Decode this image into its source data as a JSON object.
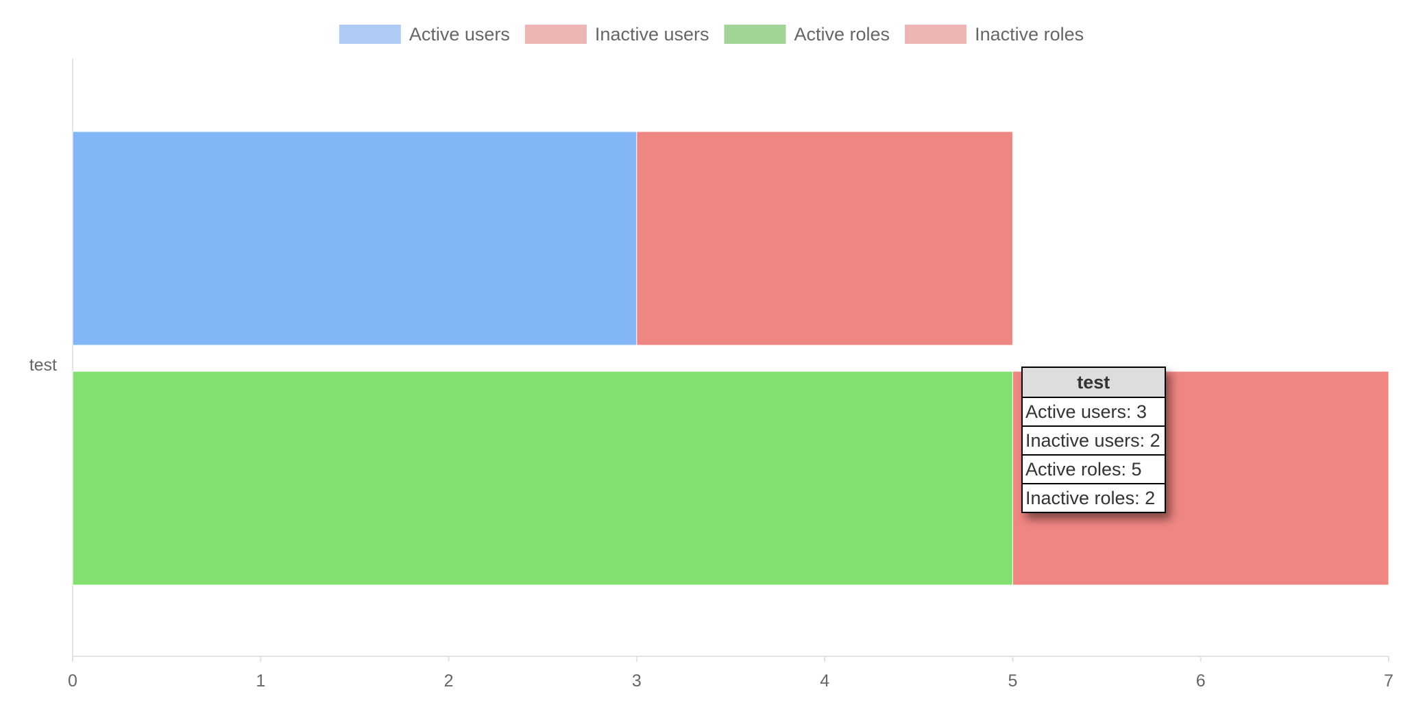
{
  "chart_data": {
    "type": "bar",
    "orientation": "horizontal",
    "stacked": true,
    "categories": [
      "test"
    ],
    "series": [
      {
        "name": "Active users",
        "stack": "users",
        "values": [
          3
        ],
        "color": "#82b6f7",
        "legend_color": "#aecbf5"
      },
      {
        "name": "Inactive users",
        "stack": "users",
        "values": [
          2
        ],
        "color": "#ef8682",
        "legend_color": "#edb5b4"
      },
      {
        "name": "Active roles",
        "stack": "roles",
        "values": [
          5
        ],
        "color": "#82e070",
        "legend_color": "#a0d595"
      },
      {
        "name": "Inactive roles",
        "stack": "roles",
        "values": [
          2
        ],
        "color": "#ef8682",
        "legend_color": "#edb5b4"
      }
    ],
    "xlim": [
      0,
      7
    ],
    "x_ticks": [
      "0",
      "1",
      "2",
      "3",
      "4",
      "5",
      "6",
      "7"
    ],
    "legend_position": "top",
    "grid": false,
    "tooltip": {
      "title": "test",
      "rows": [
        "Active users: 3",
        "Inactive users: 2",
        "Active roles: 5",
        "Inactive roles: 2"
      ]
    }
  }
}
